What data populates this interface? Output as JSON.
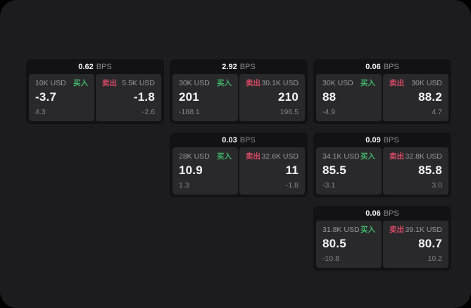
{
  "labels": {
    "bps_unit": "BPS",
    "buy": "买入",
    "sell": "卖出"
  },
  "colors": {
    "backdrop": "#000000",
    "panel_background": "#1c1c1e",
    "card_background": "#121214",
    "tile_background": "#29292c",
    "primary_text": "#f5f5f7",
    "secondary_text": "#98989d",
    "buy_accent": "#42b368",
    "sell_accent": "#d44862"
  },
  "cards": [
    {
      "bps": "0.62",
      "buy": {
        "notional": "10K USD",
        "price": "-3.7",
        "delta": "4.3"
      },
      "sell": {
        "notional": "5.5K USD",
        "price": "-1.8",
        "delta": "-2.6"
      }
    },
    {
      "bps": "2.92",
      "buy": {
        "notional": "30K USD",
        "price": "201",
        "delta": "-188.1"
      },
      "sell": {
        "notional": "30.1K USD",
        "price": "210",
        "delta": "196.5"
      }
    },
    {
      "bps": "0.06",
      "buy": {
        "notional": "30K USD",
        "price": "88",
        "delta": "-4.9"
      },
      "sell": {
        "notional": "30K USD",
        "price": "88.2",
        "delta": "4.7"
      }
    },
    {
      "bps": "0.03",
      "buy": {
        "notional": "28K USD",
        "price": "10.9",
        "delta": "1.3"
      },
      "sell": {
        "notional": "32.6K USD",
        "price": "11",
        "delta": "-1.8"
      }
    },
    {
      "bps": "0.09",
      "buy": {
        "notional": "34.1K USD",
        "price": "85.5",
        "delta": "-3.1"
      },
      "sell": {
        "notional": "32.8K USD",
        "price": "85.8",
        "delta": "3.0"
      }
    },
    {
      "bps": "0.06",
      "buy": {
        "notional": "31.8K USD",
        "price": "80.5",
        "delta": "-10.8"
      },
      "sell": {
        "notional": "39.1K USD",
        "price": "80.7",
        "delta": "10.2"
      }
    }
  ]
}
